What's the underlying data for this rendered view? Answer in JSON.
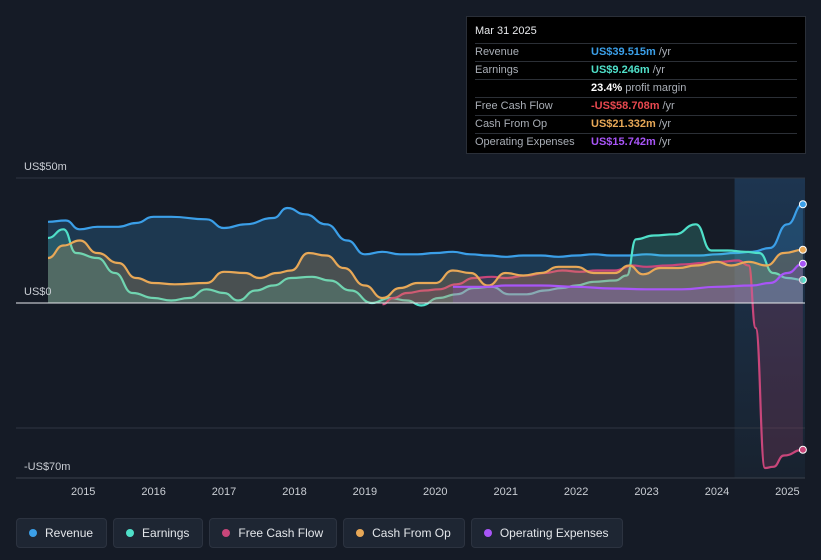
{
  "chart_data": {
    "type": "area",
    "currency_prefix": "US$",
    "y_labels": {
      "top": "US$50m",
      "zero": "US$0",
      "bottom": "-US$70m"
    },
    "ylim": [
      -70,
      50
    ],
    "xlim": [
      2014.5,
      2025.25
    ],
    "x_ticks": [
      "2015",
      "2016",
      "2017",
      "2018",
      "2019",
      "2020",
      "2021",
      "2022",
      "2023",
      "2024",
      "2025"
    ],
    "highlight_start": 2024.25,
    "series": [
      {
        "name": "Revenue",
        "color": "#3b9fe8",
        "points": [
          [
            2014.5,
            32.5
          ],
          [
            2014.75,
            33
          ],
          [
            2014.95,
            29.5
          ],
          [
            2015.2,
            30.5
          ],
          [
            2015.5,
            30.5
          ],
          [
            2015.75,
            32
          ],
          [
            2016.0,
            34.5
          ],
          [
            2016.25,
            34.5
          ],
          [
            2016.75,
            33.5
          ],
          [
            2017.0,
            30
          ],
          [
            2017.3,
            31.5
          ],
          [
            2017.7,
            34
          ],
          [
            2017.9,
            38
          ],
          [
            2018.15,
            35.5
          ],
          [
            2018.45,
            31.5
          ],
          [
            2018.75,
            25
          ],
          [
            2019.0,
            19.5
          ],
          [
            2019.25,
            20.5
          ],
          [
            2019.5,
            19.5
          ],
          [
            2019.75,
            19.5
          ],
          [
            2020.0,
            20
          ],
          [
            2020.25,
            20.5
          ],
          [
            2020.5,
            19.5
          ],
          [
            2020.75,
            19
          ],
          [
            2021.0,
            18.5
          ],
          [
            2021.25,
            19
          ],
          [
            2021.5,
            19
          ],
          [
            2021.75,
            18.5
          ],
          [
            2022.0,
            19
          ],
          [
            2022.25,
            19.5
          ],
          [
            2022.5,
            19
          ],
          [
            2022.75,
            19
          ],
          [
            2023.0,
            19.5
          ],
          [
            2023.25,
            19
          ],
          [
            2023.5,
            19
          ],
          [
            2023.75,
            19
          ],
          [
            2024.0,
            19.5
          ],
          [
            2024.25,
            20
          ],
          [
            2024.5,
            20.5
          ],
          [
            2024.75,
            22
          ],
          [
            2025.0,
            31.5
          ],
          [
            2025.22,
            39.5
          ]
        ]
      },
      {
        "name": "Earnings",
        "color": "#4fe0c9",
        "points": [
          [
            2014.5,
            26
          ],
          [
            2014.72,
            29.5
          ],
          [
            2014.9,
            20
          ],
          [
            2015.2,
            18
          ],
          [
            2015.45,
            12
          ],
          [
            2015.7,
            4
          ],
          [
            2016.0,
            2
          ],
          [
            2016.25,
            1
          ],
          [
            2016.5,
            2
          ],
          [
            2016.75,
            5.5
          ],
          [
            2017.0,
            4
          ],
          [
            2017.2,
            1
          ],
          [
            2017.45,
            5
          ],
          [
            2017.7,
            7
          ],
          [
            2017.95,
            10
          ],
          [
            2018.25,
            10.5
          ],
          [
            2018.5,
            9
          ],
          [
            2018.8,
            5
          ],
          [
            2019.1,
            0
          ],
          [
            2019.35,
            2
          ],
          [
            2019.6,
            1
          ],
          [
            2019.8,
            -1
          ],
          [
            2020.05,
            2
          ],
          [
            2020.3,
            3.5
          ],
          [
            2020.55,
            6
          ],
          [
            2020.8,
            6.5
          ],
          [
            2021.05,
            3.5
          ],
          [
            2021.3,
            3.5
          ],
          [
            2021.55,
            5
          ],
          [
            2021.8,
            6
          ],
          [
            2022.0,
            7
          ],
          [
            2022.25,
            8.5
          ],
          [
            2022.55,
            9
          ],
          [
            2022.72,
            11
          ],
          [
            2022.85,
            25.5
          ],
          [
            2023.1,
            27
          ],
          [
            2023.4,
            27.5
          ],
          [
            2023.7,
            31.5
          ],
          [
            2023.92,
            21
          ],
          [
            2024.15,
            21
          ],
          [
            2024.4,
            20.5
          ],
          [
            2024.6,
            20
          ],
          [
            2024.8,
            12
          ],
          [
            2025.0,
            10
          ],
          [
            2025.22,
            9.2
          ]
        ]
      },
      {
        "name": "Free Cash Flow",
        "color": "#c8467a",
        "points": [
          [
            2019.25,
            -0.5
          ],
          [
            2019.4,
            2
          ],
          [
            2019.6,
            4
          ],
          [
            2019.85,
            5
          ],
          [
            2020.05,
            5.5
          ],
          [
            2020.3,
            7.5
          ],
          [
            2020.55,
            10
          ],
          [
            2020.8,
            10.5
          ],
          [
            2021.0,
            10
          ],
          [
            2021.3,
            11
          ],
          [
            2021.55,
            12
          ],
          [
            2021.8,
            13
          ],
          [
            2022.05,
            12.5
          ],
          [
            2022.3,
            13
          ],
          [
            2022.55,
            13
          ],
          [
            2022.8,
            15
          ],
          [
            2023.0,
            14.5
          ],
          [
            2023.3,
            15
          ],
          [
            2023.55,
            15.5
          ],
          [
            2023.8,
            16
          ],
          [
            2024.05,
            16.5
          ],
          [
            2024.3,
            17
          ],
          [
            2024.45,
            15
          ],
          [
            2024.55,
            -10
          ],
          [
            2024.68,
            -66
          ],
          [
            2024.8,
            -65.5
          ],
          [
            2024.95,
            -61
          ],
          [
            2025.22,
            -58.7
          ]
        ]
      },
      {
        "name": "Cash From Op",
        "color": "#e8a857",
        "points": [
          [
            2014.5,
            18
          ],
          [
            2014.72,
            23
          ],
          [
            2014.95,
            25
          ],
          [
            2015.2,
            20
          ],
          [
            2015.5,
            16
          ],
          [
            2015.75,
            10
          ],
          [
            2016.0,
            8
          ],
          [
            2016.3,
            7.5
          ],
          [
            2016.75,
            8
          ],
          [
            2017.0,
            12.5
          ],
          [
            2017.3,
            12
          ],
          [
            2017.5,
            10
          ],
          [
            2017.75,
            12
          ],
          [
            2017.95,
            13
          ],
          [
            2018.2,
            20
          ],
          [
            2018.45,
            19
          ],
          [
            2018.7,
            14
          ],
          [
            2019.0,
            7
          ],
          [
            2019.25,
            2
          ],
          [
            2019.5,
            6
          ],
          [
            2019.75,
            8
          ],
          [
            2020.0,
            8
          ],
          [
            2020.25,
            13
          ],
          [
            2020.5,
            12
          ],
          [
            2020.75,
            7
          ],
          [
            2021.0,
            12
          ],
          [
            2021.25,
            11
          ],
          [
            2021.5,
            12
          ],
          [
            2021.75,
            14.5
          ],
          [
            2022.0,
            14.5
          ],
          [
            2022.25,
            12
          ],
          [
            2022.55,
            12
          ],
          [
            2022.75,
            15
          ],
          [
            2022.95,
            11.5
          ],
          [
            2023.2,
            14
          ],
          [
            2023.45,
            14
          ],
          [
            2023.7,
            15
          ],
          [
            2024.0,
            16.5
          ],
          [
            2024.2,
            15
          ],
          [
            2024.45,
            16.5
          ],
          [
            2024.7,
            15
          ],
          [
            2024.95,
            20
          ],
          [
            2025.22,
            21.3
          ]
        ]
      },
      {
        "name": "Operating Expenses",
        "color": "#a855f7",
        "points": [
          [
            2020.25,
            6.5
          ],
          [
            2020.5,
            6.5
          ],
          [
            2020.75,
            6.5
          ],
          [
            2021.0,
            7
          ],
          [
            2021.5,
            7
          ],
          [
            2022.0,
            6.5
          ],
          [
            2022.5,
            5.8
          ],
          [
            2023.0,
            5.5
          ],
          [
            2023.5,
            5.5
          ],
          [
            2024.0,
            6.5
          ],
          [
            2024.5,
            7
          ],
          [
            2024.75,
            8
          ],
          [
            2025.0,
            12
          ],
          [
            2025.22,
            15.7
          ]
        ]
      }
    ],
    "tooltip": {
      "date": "Mar 31 2025",
      "rows": [
        {
          "label": "Revenue",
          "value": "US$39.515m",
          "unit": "/yr",
          "color": "#3b9fe8"
        },
        {
          "label": "Earnings",
          "value": "US$9.246m",
          "unit": "/yr",
          "color": "#4fe0c9"
        },
        {
          "label": "",
          "value": "23.4%",
          "unit": "profit margin",
          "color": "#ffffff"
        },
        {
          "label": "Free Cash Flow",
          "value": "-US$58.708m",
          "unit": "/yr",
          "color": "#e8484f"
        },
        {
          "label": "Cash From Op",
          "value": "US$21.332m",
          "unit": "/yr",
          "color": "#e8a857"
        },
        {
          "label": "Operating Expenses",
          "value": "US$15.742m",
          "unit": "/yr",
          "color": "#a855f7"
        }
      ]
    }
  },
  "legend": [
    {
      "label": "Revenue",
      "color": "#3b9fe8"
    },
    {
      "label": "Earnings",
      "color": "#4fe0c9"
    },
    {
      "label": "Free Cash Flow",
      "color": "#c8467a"
    },
    {
      "label": "Cash From Op",
      "color": "#e8a857"
    },
    {
      "label": "Operating Expenses",
      "color": "#a855f7"
    }
  ]
}
